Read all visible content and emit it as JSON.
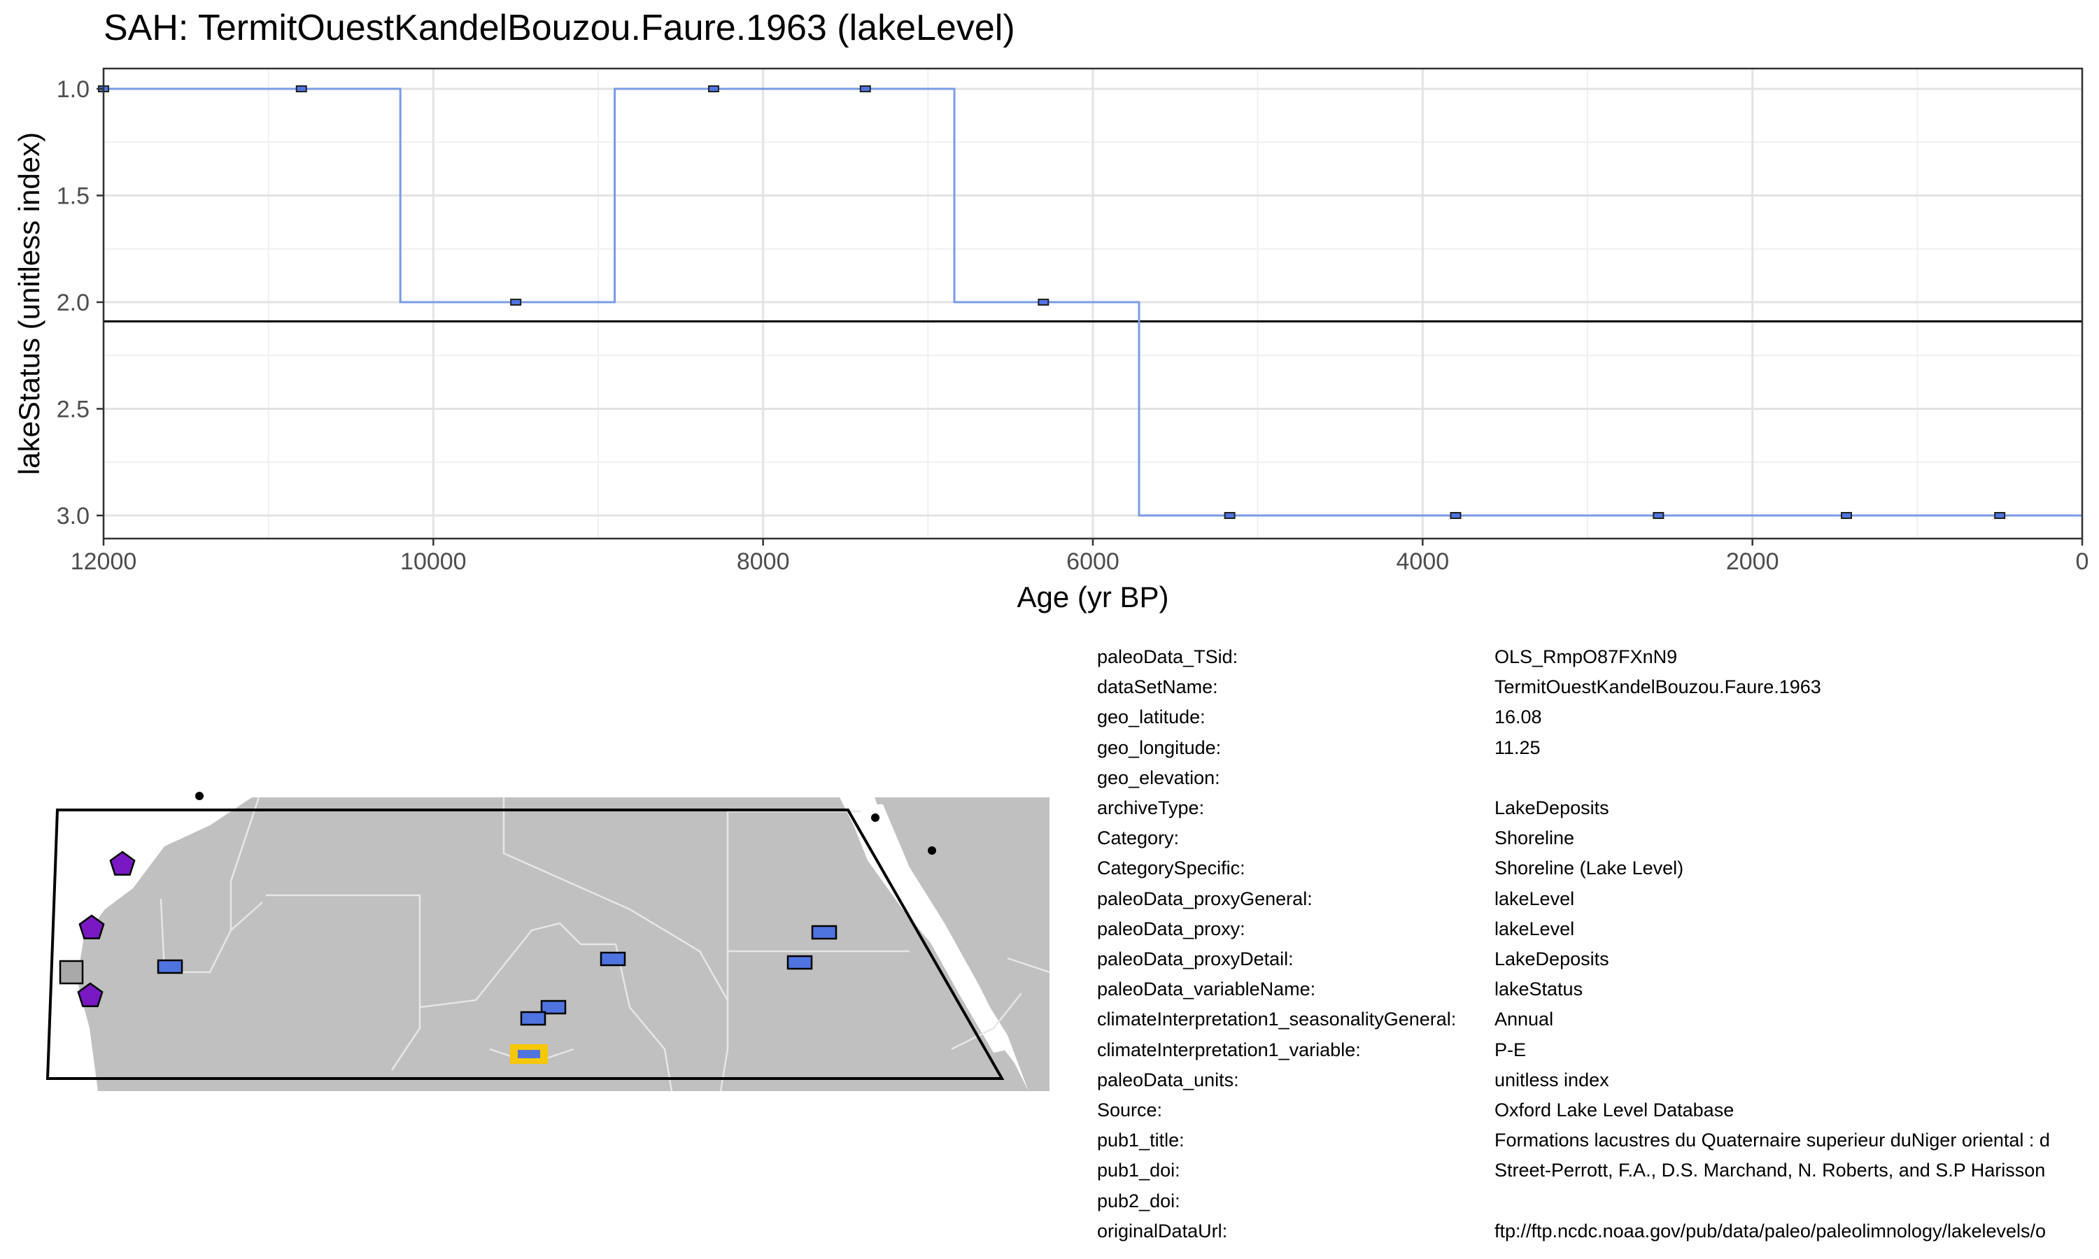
{
  "chart_data": {
    "type": "line",
    "title": "SAH: TermitOuestKandelBouzou.Faure.1963 (lakeLevel)",
    "xlabel": "Age (yr BP)",
    "ylabel": "lakeStatus (unitless index)",
    "x_reversed": true,
    "y_reversed": true,
    "xlim": [
      12000,
      0
    ],
    "ylim": [
      1.0,
      3.0
    ],
    "x_ticks": [
      12000,
      10000,
      8000,
      6000,
      4000,
      2000,
      0
    ],
    "x_tick_labels": [
      "12000",
      "10000",
      "8000",
      "6000",
      "4000",
      "2000",
      "0"
    ],
    "y_ticks": [
      1.0,
      1.5,
      2.0,
      2.5,
      3.0
    ],
    "y_tick_labels": [
      "1.0",
      "1.5",
      "2.0",
      "2.5",
      "3.0"
    ],
    "grid": true,
    "step_line": {
      "color": "#7b9be6",
      "x": [
        12000,
        10200,
        10200,
        8900,
        8900,
        6840,
        6840,
        5720,
        5720,
        0
      ],
      "y": [
        1,
        1,
        2,
        2,
        1,
        1,
        2,
        2,
        3,
        3
      ]
    },
    "points": {
      "x": [
        12000,
        10800,
        9500,
        8300,
        7380,
        6300,
        5170,
        3800,
        2570,
        1430,
        500
      ],
      "y": [
        1,
        1,
        2,
        1,
        1,
        2,
        3,
        3,
        3,
        3,
        3
      ]
    },
    "reference_line": {
      "y": 2.09,
      "color": "#000000"
    }
  },
  "metadata": {
    "rows": [
      {
        "key": "paleoData_TSid:",
        "value": "OLS_RmpO87FXnN9"
      },
      {
        "key": "dataSetName:",
        "value": "TermitOuestKandelBouzou.Faure.1963"
      },
      {
        "key": "geo_latitude:",
        "value": "16.08"
      },
      {
        "key": "geo_longitude:",
        "value": "11.25"
      },
      {
        "key": "geo_elevation:",
        "value": ""
      },
      {
        "key": "archiveType:",
        "value": "LakeDeposits"
      },
      {
        "key": "Category:",
        "value": "Shoreline"
      },
      {
        "key": "CategorySpecific:",
        "value": "Shoreline (Lake Level)"
      },
      {
        "key": "paleoData_proxyGeneral:",
        "value": "lakeLevel"
      },
      {
        "key": "paleoData_proxy:",
        "value": "lakeLevel"
      },
      {
        "key": "paleoData_proxyDetail:",
        "value": "LakeDeposits"
      },
      {
        "key": "paleoData_variableName:",
        "value": "lakeStatus"
      },
      {
        "key": "climateInterpretation1_seasonalityGeneral:",
        "value": "Annual"
      },
      {
        "key": "climateInterpretation1_variable:",
        "value": "P-E"
      },
      {
        "key": "paleoData_units:",
        "value": "unitless index"
      },
      {
        "key": "Source:",
        "value": "Oxford Lake Level Database"
      },
      {
        "key": "pub1_title:",
        "value": "Formations lacustres du Quaternaire superieur duNiger oriental : d"
      },
      {
        "key": "pub1_doi:",
        "value": "Street-Perrott, F.A., D.S. Marchand, N. Roberts, and S.P Harisson"
      },
      {
        "key": "pub2_doi:",
        "value": ""
      },
      {
        "key": "originalDataUrl:",
        "value": "ftp://ftp.ncdc.noaa.gov/pub/data/paleo/paleolimnology/lakelevels/o"
      }
    ]
  },
  "map": {
    "land_color": "#c0c0c0",
    "marker_colors": {
      "blue": "#4f74e0",
      "purple": "#7a18c4",
      "gray": "#a9a9a9",
      "highlight": "#f6c800"
    }
  }
}
